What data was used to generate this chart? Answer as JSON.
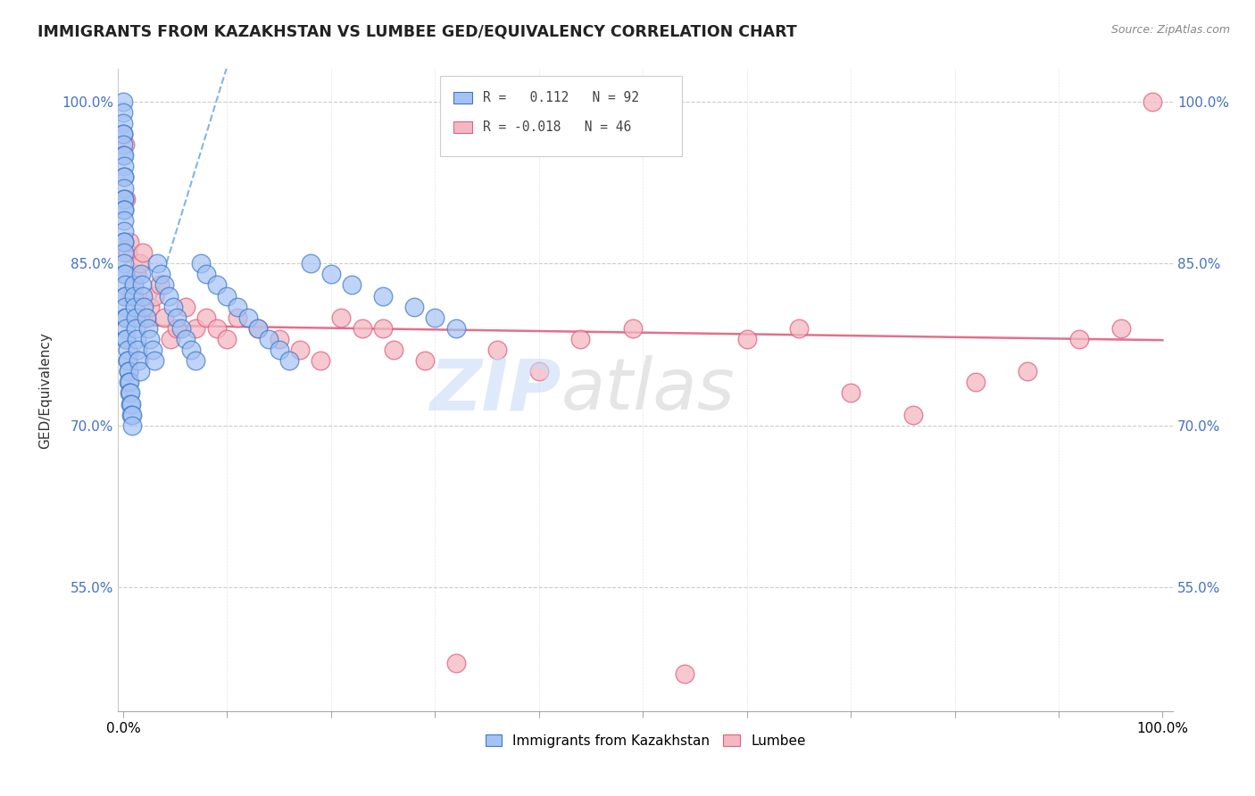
{
  "title": "IMMIGRANTS FROM KAZAKHSTAN VS LUMBEE GED/EQUIVALENCY CORRELATION CHART",
  "source": "Source: ZipAtlas.com",
  "ylabel": "GED/Equivalency",
  "legend_blue_r": "R =  0.112",
  "legend_blue_n": "N = 92",
  "legend_pink_r": "R = -0.018",
  "legend_pink_n": "N = 46",
  "blue_face_color": "#a4c2f4",
  "blue_edge_color": "#3d78c8",
  "pink_face_color": "#f4b8c1",
  "pink_edge_color": "#e06080",
  "blue_line_color": "#6fa8dc",
  "pink_line_color": "#e06080",
  "watermark_zip_color": "#c8ddf8",
  "watermark_atlas_color": "#d0d0d0",
  "ytick_vals": [
    0.55,
    0.7,
    0.85,
    1.0
  ],
  "ytick_labels": [
    "55.0%",
    "70.0%",
    "85.0%",
    "100.0%"
  ],
  "xlim": [
    -0.005,
    1.01
  ],
  "ylim": [
    0.435,
    1.03
  ],
  "blue_trend_x0": 0.0,
  "blue_trend_y0": 0.72,
  "blue_trend_x1": 0.08,
  "blue_trend_y1": 0.97,
  "pink_trend_x0": 0.0,
  "pink_trend_y0": 0.793,
  "pink_trend_x1": 1.0,
  "pink_trend_y1": 0.779,
  "blue_dots": {
    "x": [
      0.0003,
      0.0003,
      0.0003,
      0.0004,
      0.0004,
      0.0005,
      0.0005,
      0.0006,
      0.0006,
      0.0006,
      0.0007,
      0.0007,
      0.0007,
      0.0008,
      0.0008,
      0.0009,
      0.001,
      0.001,
      0.001,
      0.001,
      0.001,
      0.001,
      0.001,
      0.002,
      0.002,
      0.002,
      0.002,
      0.002,
      0.002,
      0.003,
      0.003,
      0.003,
      0.003,
      0.004,
      0.004,
      0.004,
      0.005,
      0.005,
      0.005,
      0.006,
      0.006,
      0.007,
      0.007,
      0.008,
      0.008,
      0.009,
      0.009,
      0.01,
      0.01,
      0.011,
      0.012,
      0.012,
      0.013,
      0.014,
      0.015,
      0.016,
      0.017,
      0.018,
      0.019,
      0.02,
      0.022,
      0.024,
      0.026,
      0.028,
      0.03,
      0.033,
      0.036,
      0.04,
      0.044,
      0.048,
      0.052,
      0.056,
      0.06,
      0.065,
      0.07,
      0.075,
      0.08,
      0.09,
      0.1,
      0.11,
      0.12,
      0.13,
      0.14,
      0.15,
      0.16,
      0.18,
      0.2,
      0.22,
      0.25,
      0.28,
      0.3,
      0.32
    ],
    "y": [
      1.0,
      0.99,
      0.98,
      0.97,
      0.97,
      0.96,
      0.95,
      0.95,
      0.94,
      0.93,
      0.93,
      0.92,
      0.91,
      0.91,
      0.9,
      0.9,
      0.89,
      0.88,
      0.87,
      0.87,
      0.86,
      0.85,
      0.84,
      0.84,
      0.83,
      0.82,
      0.82,
      0.81,
      0.8,
      0.8,
      0.79,
      0.78,
      0.78,
      0.77,
      0.76,
      0.76,
      0.75,
      0.75,
      0.74,
      0.74,
      0.73,
      0.73,
      0.72,
      0.72,
      0.71,
      0.71,
      0.7,
      0.83,
      0.82,
      0.81,
      0.8,
      0.79,
      0.78,
      0.77,
      0.76,
      0.75,
      0.84,
      0.83,
      0.82,
      0.81,
      0.8,
      0.79,
      0.78,
      0.77,
      0.76,
      0.85,
      0.84,
      0.83,
      0.82,
      0.81,
      0.8,
      0.79,
      0.78,
      0.77,
      0.76,
      0.85,
      0.84,
      0.83,
      0.82,
      0.81,
      0.8,
      0.79,
      0.78,
      0.77,
      0.76,
      0.85,
      0.84,
      0.83,
      0.82,
      0.81,
      0.8,
      0.79
    ]
  },
  "pink_dots": {
    "x": [
      0.002,
      0.003,
      0.004,
      0.006,
      0.008,
      0.01,
      0.013,
      0.016,
      0.019,
      0.022,
      0.026,
      0.03,
      0.035,
      0.04,
      0.046,
      0.052,
      0.06,
      0.07,
      0.08,
      0.09,
      0.1,
      0.11,
      0.13,
      0.15,
      0.17,
      0.19,
      0.21,
      0.23,
      0.26,
      0.29,
      0.32,
      0.36,
      0.4,
      0.44,
      0.49,
      0.54,
      0.6,
      0.65,
      0.7,
      0.76,
      0.82,
      0.87,
      0.92,
      0.96,
      0.99,
      0.25
    ],
    "y": [
      0.96,
      0.91,
      0.86,
      0.87,
      0.82,
      0.83,
      0.84,
      0.85,
      0.86,
      0.8,
      0.81,
      0.82,
      0.83,
      0.8,
      0.78,
      0.79,
      0.81,
      0.79,
      0.8,
      0.79,
      0.78,
      0.8,
      0.79,
      0.78,
      0.77,
      0.76,
      0.8,
      0.79,
      0.77,
      0.76,
      0.48,
      0.77,
      0.75,
      0.78,
      0.79,
      0.47,
      0.78,
      0.79,
      0.73,
      0.71,
      0.74,
      0.75,
      0.78,
      0.79,
      1.0,
      0.79
    ]
  }
}
